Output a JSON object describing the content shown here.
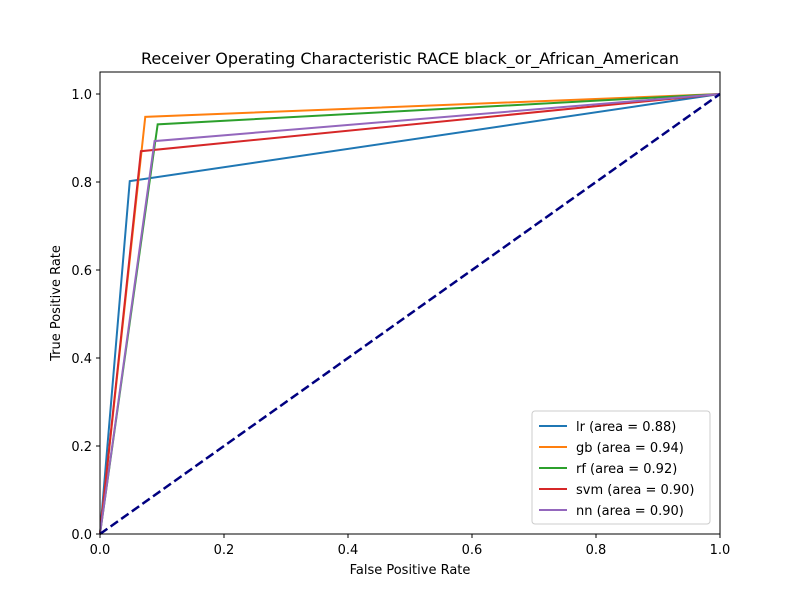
{
  "chart_data": {
    "type": "line",
    "title": "Receiver Operating Characteristic RACE  black_or_African_American",
    "xlabel": "False Positive Rate",
    "ylabel": "True Positive Rate",
    "xlim": [
      0.0,
      1.0
    ],
    "ylim": [
      0.0,
      1.05
    ],
    "x_ticks": [
      "0.0",
      "0.2",
      "0.4",
      "0.6",
      "0.8",
      "1.0"
    ],
    "y_ticks": [
      "0.0",
      "0.2",
      "0.4",
      "0.6",
      "0.8",
      "1.0"
    ],
    "grid": false,
    "legend_position": "lower-right",
    "series": [
      {
        "name": "lr (area = 0.88)",
        "color": "#1f77b4",
        "x": [
          0.0,
          0.048,
          1.0
        ],
        "y": [
          0.0,
          0.802,
          1.0
        ]
      },
      {
        "name": "gb (area = 0.94)",
        "color": "#ff7f0e",
        "x": [
          0.0,
          0.073,
          1.0
        ],
        "y": [
          0.0,
          0.948,
          1.0
        ]
      },
      {
        "name": "rf (area = 0.92)",
        "color": "#2ca02c",
        "x": [
          0.0,
          0.093,
          1.0
        ],
        "y": [
          0.0,
          0.931,
          1.0
        ]
      },
      {
        "name": "svm (area = 0.90)",
        "color": "#d62728",
        "x": [
          0.0,
          0.066,
          1.0
        ],
        "y": [
          0.0,
          0.87,
          1.0
        ]
      },
      {
        "name": "nn (area = 0.90)",
        "color": "#9467bd",
        "x": [
          0.0,
          0.088,
          1.0
        ],
        "y": [
          0.0,
          0.893,
          1.0
        ]
      }
    ],
    "reference_line": {
      "color": "#000080",
      "style": "dashed",
      "x": [
        0.0,
        1.0
      ],
      "y": [
        0.0,
        1.0
      ]
    }
  }
}
